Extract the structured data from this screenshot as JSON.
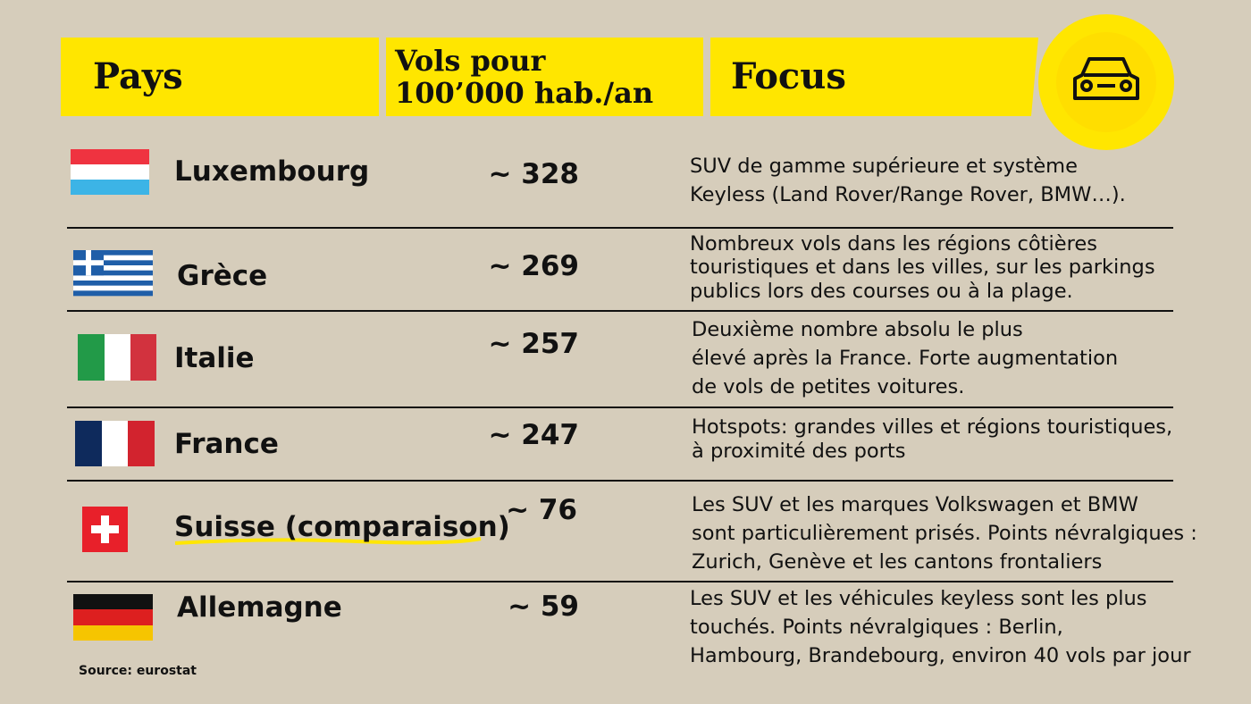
{
  "header": {
    "country": "Pays",
    "rate_lines": [
      "Vols pour",
      "100’000 hab./an"
    ],
    "focus": "Focus"
  },
  "table": {
    "rows": [
      {
        "country": "Luxembourg",
        "rate": "~ 328",
        "focus_lines": [
          "SUV de gamme supérieure et système",
          "Keyless (Land Rover/Range Rover, BMW…)."
        ]
      },
      {
        "country": "Grèce",
        "rate": "~ 269",
        "focus_lines": [
          "Nombreux vols dans les régions côtières",
          "touristiques et dans les villes, sur les parkings",
          "publics lors des courses ou à la plage."
        ]
      },
      {
        "country": "Italie",
        "rate": "~ 257",
        "focus_lines": [
          "Deuxième nombre absolu le plus",
          "élevé après la France. Forte augmentation",
          "de vols de petites voitures."
        ]
      },
      {
        "country": "France",
        "rate": "~ 247",
        "focus_lines": [
          "Hotspots: grandes villes et régions touristiques,",
          "à proximité des ports"
        ]
      },
      {
        "country": "Suisse (comparaison)",
        "rate": "~ 76",
        "focus_lines": [
          "Les SUV et les marques Volkswagen et BMW",
          "sont particulièrement prisés. Points névralgiques :",
          "Zurich, Genève et les cantons frontaliers"
        ]
      },
      {
        "country": "Allemagne",
        "rate": "~ 59",
        "focus_lines": [
          "Les SUV et les véhicules keyless sont les plus",
          "touchés. Points névralgiques : Berlin,",
          "Hambourg, Brandebourg, environ 40 vols par jour"
        ]
      }
    ]
  },
  "source": "Source: eurostat"
}
